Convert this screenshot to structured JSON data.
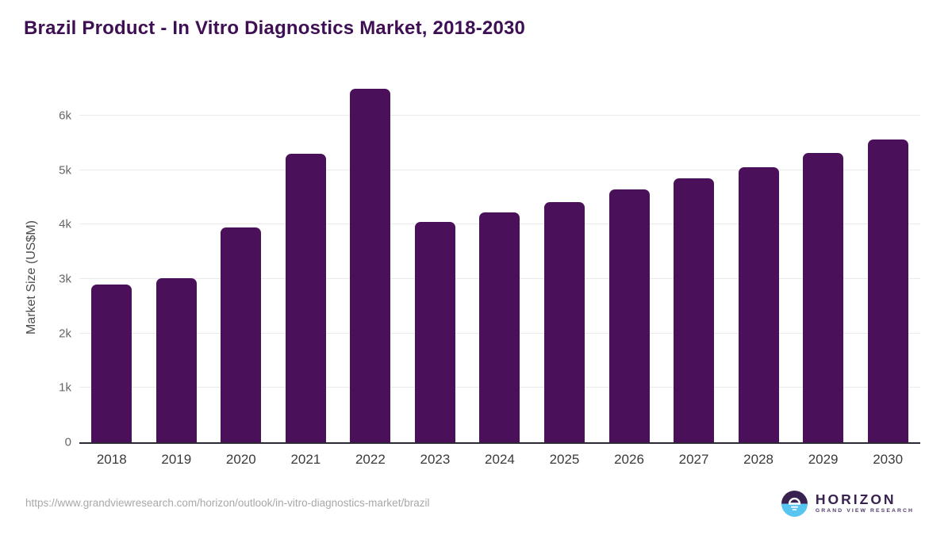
{
  "logo": {
    "name": "HORIZON",
    "subtitle": "GRAND VIEW RESEARCH",
    "mark_top_color": "#392150",
    "mark_bottom_color": "#58C4F0"
  },
  "source_url": "https://www.grandviewresearch.com/horizon/outlook/in-vitro-diagnostics-market/brazil",
  "colors": {
    "bar": "#4A115A",
    "title_text": "#3E1053",
    "axis_line": "#2D2A35",
    "gridline": "#EAEAEA",
    "y_tick_text": "#666666",
    "x_tick_text": "#3A3A3A"
  },
  "chart_data": {
    "type": "bar",
    "title": "Brazil Product - In Vitro Diagnostics Market, 2018-2030",
    "categories": [
      "2018",
      "2019",
      "2020",
      "2021",
      "2022",
      "2023",
      "2024",
      "2025",
      "2026",
      "2027",
      "2028",
      "2029",
      "2030"
    ],
    "values": [
      2900,
      3020,
      3940,
      5300,
      6500,
      4050,
      4220,
      4410,
      4640,
      4850,
      5060,
      5320,
      5570
    ],
    "xlabel": "",
    "ylabel": "Market Size (US$M)",
    "ylim": [
      0,
      6670
    ],
    "yticks": [
      {
        "value": 0,
        "label": "0"
      },
      {
        "value": 1000,
        "label": "1k"
      },
      {
        "value": 2000,
        "label": "2k"
      },
      {
        "value": 3000,
        "label": "3k"
      },
      {
        "value": 4000,
        "label": "4k"
      },
      {
        "value": 5000,
        "label": "5k"
      },
      {
        "value": 6000,
        "label": "6k"
      }
    ],
    "grid": true,
    "legend": false,
    "bar_color": "#4A115A"
  }
}
